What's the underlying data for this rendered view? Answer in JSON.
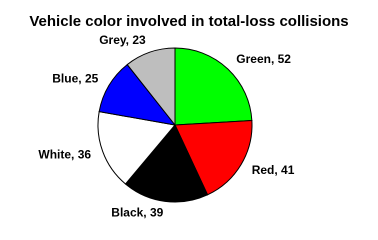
{
  "chart_data": {
    "type": "pie",
    "title": "Vehicle color involved in total-loss collisions",
    "values": [
      52,
      41,
      39,
      36,
      25,
      23
    ],
    "value_labels": [
      "Green, 52",
      "Red, 41",
      "Black, 39",
      "White, 36",
      "Blue, 25",
      "Grey, 23"
    ],
    "colors": [
      "#00ff00",
      "#ff0000",
      "#000000",
      "#ffffff",
      "#0000ff",
      "#bebebe"
    ],
    "clockwise": true
  }
}
